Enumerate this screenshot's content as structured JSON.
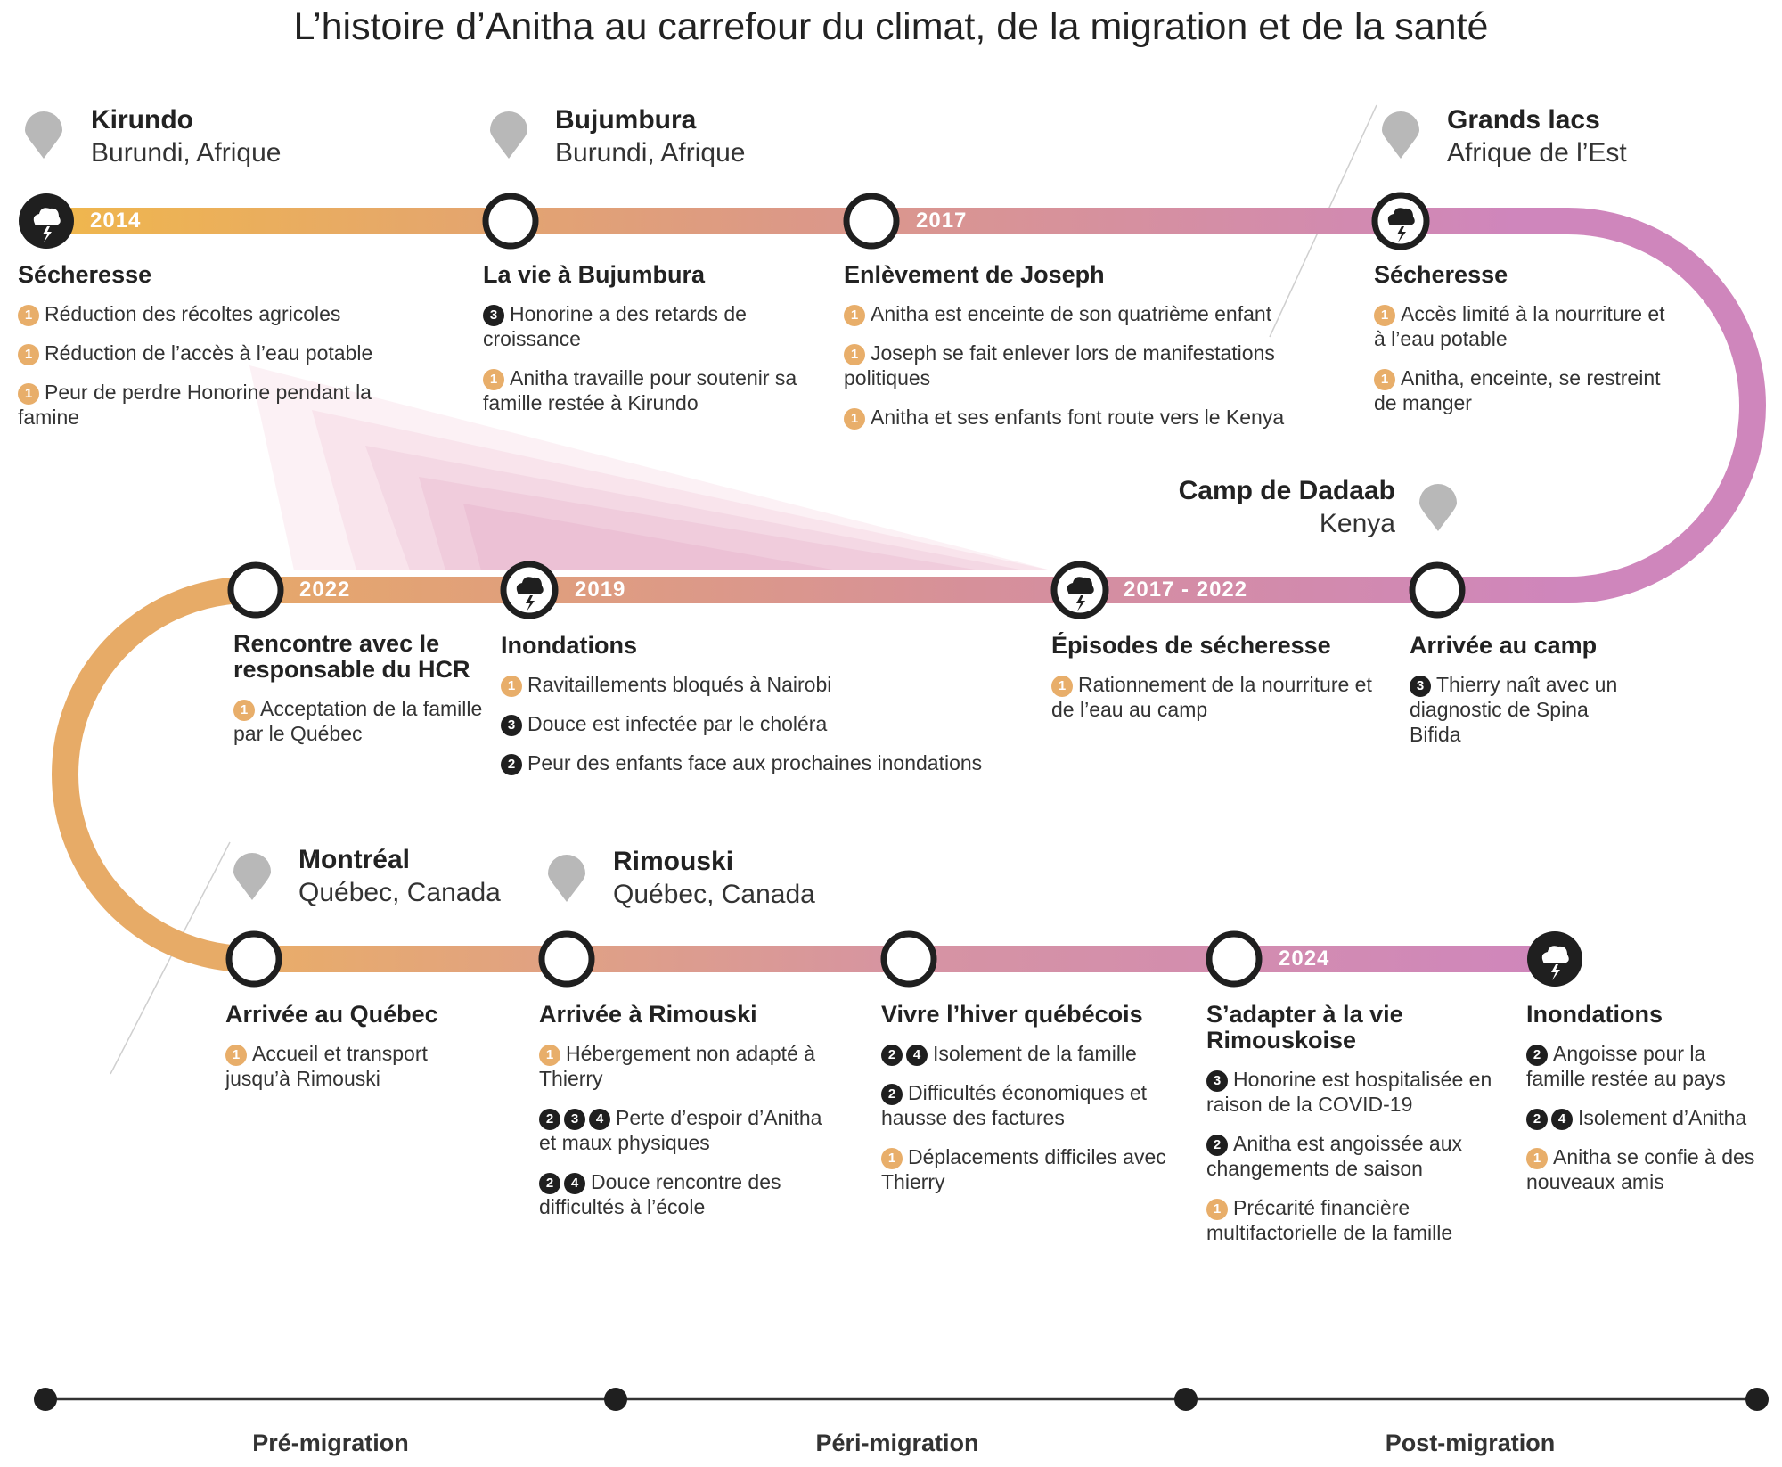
{
  "title": "L’histoire d’Anitha au carrefour du climat, de la migration et de la santé",
  "colors": {
    "gradient_start": "#f0b74c",
    "gradient_mid": "#dc9986",
    "gradient_end": "#cf86bc",
    "node_border": "#1f1f1f",
    "pin": "#b8b8b8",
    "badge_1": "#e8ae6a",
    "badge_dark": "#1f1f1f"
  },
  "locations": {
    "kirundo": {
      "city": "Kirundo",
      "region": "Burundi, Afrique"
    },
    "bujumbura": {
      "city": "Bujumbura",
      "region": "Burundi, Afrique"
    },
    "grands_lacs": {
      "city": "Grands lacs",
      "region": "Afrique de l’Est"
    },
    "dadaab": {
      "city": "Camp de Dadaab",
      "region": "Kenya"
    },
    "montreal": {
      "city": "Montréal",
      "region": "Québec, Canada"
    },
    "rimouski": {
      "city": "Rimouski",
      "region": "Québec, Canada"
    }
  },
  "years": {
    "y2014": "2014",
    "y2017": "2017",
    "y2022": "2022",
    "y2019": "2019",
    "y2017_2022": "2017 - 2022",
    "y2024": "2024"
  },
  "events": {
    "secheresse_1": {
      "title": "Sécheresse",
      "items": [
        {
          "badges": [
            "1"
          ],
          "text": "Réduction des récoltes agricoles"
        },
        {
          "badges": [
            "1"
          ],
          "text": "Réduction de l’accès à l’eau potable"
        },
        {
          "badges": [
            "1"
          ],
          "text": "Peur de perdre Honorine pendant la famine"
        }
      ]
    },
    "vie_bujumbura": {
      "title": "La vie à Bujumbura",
      "items": [
        {
          "badges": [
            "3"
          ],
          "text": "Honorine a des retards de croissance"
        },
        {
          "badges": [
            "1"
          ],
          "text": "Anitha travaille pour soutenir sa famille restée à Kirundo"
        }
      ]
    },
    "enlevement": {
      "title": "Enlèvement de Joseph",
      "items": [
        {
          "badges": [
            "1"
          ],
          "text": "Anitha est enceinte de son quatrième enfant"
        },
        {
          "badges": [
            "1"
          ],
          "text": "Joseph se fait enlever lors de manifestations politiques"
        },
        {
          "badges": [
            "1"
          ],
          "text": "Anitha et ses enfants font route vers le Kenya"
        }
      ]
    },
    "secheresse_2": {
      "title": "Sécheresse",
      "items": [
        {
          "badges": [
            "1"
          ],
          "text": "Accès limité à la nourriture et à l’eau potable"
        },
        {
          "badges": [
            "1"
          ],
          "text": "Anitha, enceinte, se restreint de manger"
        }
      ]
    },
    "rencontre_hcr": {
      "title": "Rencontre avec le responsable du HCR",
      "items": [
        {
          "badges": [
            "1"
          ],
          "text": "Acceptation de la famille par le Québec"
        }
      ]
    },
    "inondations_1": {
      "title": "Inondations",
      "items": [
        {
          "badges": [
            "1"
          ],
          "text": "Ravitaillements bloqués à Nairobi"
        },
        {
          "badges": [
            "3"
          ],
          "text": "Douce est infectée par le choléra"
        },
        {
          "badges": [
            "2"
          ],
          "text": "Peur des enfants face aux prochaines inondations"
        }
      ]
    },
    "episodes_secheresse": {
      "title": "Épisodes de sécheresse",
      "items": [
        {
          "badges": [
            "1"
          ],
          "text": "Rationnement de la nourriture et de l’eau au camp"
        }
      ]
    },
    "arrivee_camp": {
      "title": "Arrivée au camp",
      "items": [
        {
          "badges": [
            "3"
          ],
          "text": "Thierry naît avec un diagnostic de Spina Bifida"
        }
      ]
    },
    "arrivee_quebec": {
      "title": "Arrivée au Québec",
      "items": [
        {
          "badges": [
            "1"
          ],
          "text": "Accueil et transport jusqu’à Rimouski"
        }
      ]
    },
    "arrivee_rimouski": {
      "title": "Arrivée à Rimouski",
      "items": [
        {
          "badges": [
            "1"
          ],
          "text": "Hébergement non adapté à Thierry"
        },
        {
          "badges": [
            "2",
            "3",
            "4"
          ],
          "text": "Perte d’espoir d’Anitha et maux physiques"
        },
        {
          "badges": [
            "2",
            "4"
          ],
          "text": "Douce rencontre des difficultés à l’école"
        }
      ]
    },
    "hiver": {
      "title": "Vivre l’hiver québécois",
      "items": [
        {
          "badges": [
            "2",
            "4"
          ],
          "text": "Isolement de la famille"
        },
        {
          "badges": [
            "2"
          ],
          "text": "Difficultés économiques et hausse des factures"
        },
        {
          "badges": [
            "1"
          ],
          "text": "Déplacements difficiles avec Thierry"
        }
      ]
    },
    "adapter": {
      "title": "S’adapter à la vie Rimouskoise",
      "items": [
        {
          "badges": [
            "3"
          ],
          "text": "Honorine est hospitalisée en raison de la COVID-19"
        },
        {
          "badges": [
            "2"
          ],
          "text": "Anitha est angoissée aux changements de saison"
        },
        {
          "badges": [
            "1"
          ],
          "text": "Précarité financière multifactorielle de la famille"
        }
      ]
    },
    "inondations_2": {
      "title": "Inondations",
      "items": [
        {
          "badges": [
            "2"
          ],
          "text": "Angoisse pour la famille restée au pays"
        },
        {
          "badges": [
            "2",
            "4"
          ],
          "text": "Isolement d’Anitha"
        },
        {
          "badges": [
            "1"
          ],
          "text": "Anitha se confie à des nouveaux amis"
        }
      ]
    }
  },
  "phases": [
    "Pré-migration",
    "Péri-migration",
    "Post-migration"
  ],
  "icons": {
    "location": "map-pin-icon",
    "climate": "storm-cloud-icon",
    "milestone": "ring-node-icon"
  }
}
